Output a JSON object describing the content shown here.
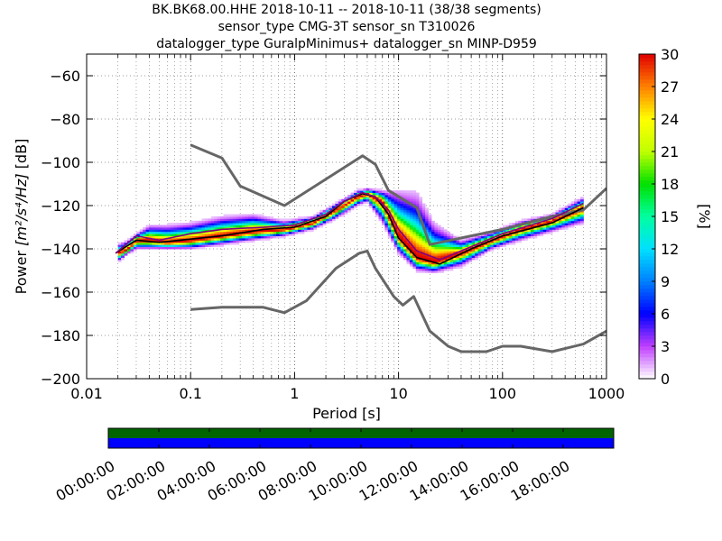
{
  "title_lines": [
    "BK.BK68.00.HHE   2018-10-11 -- 2018-10-11  (38/38 segments)",
    "sensor_type CMG-3T sensor_sn T310026",
    "datalogger_type GuralpMinimus+ datalogger_sn MINP-D959"
  ],
  "chart_data": [
    {
      "type": "heatmap",
      "title": "BK.BK68.00.HHE   2018-10-11 -- 2018-10-11  (38/38 segments)",
      "xlabel": "Period [s]",
      "ylabel": "Power [m²/s⁴/Hz] [dB]",
      "ylabel_parts": {
        "prefix": "Power ",
        "math": "[m²/s⁴/Hz]",
        "suffix": " [dB]"
      },
      "x_scale": "log",
      "xlim": [
        0.01,
        1000
      ],
      "ylim": [
        -200,
        -50
      ],
      "x_ticks": [
        0.01,
        0.1,
        1,
        10,
        100,
        1000
      ],
      "x_tick_labels": [
        "0.01",
        "0.1",
        "1",
        "10",
        "100",
        "1000"
      ],
      "y_ticks": [
        -200,
        -180,
        -160,
        -140,
        -120,
        -100,
        -80,
        -60
      ],
      "y_tick_labels": [
        "−200",
        "−180",
        "−160",
        "−140",
        "−120",
        "−100",
        "−80",
        "−60"
      ],
      "grid": true,
      "colorbar": {
        "label": "[%]",
        "range": [
          0,
          30
        ],
        "ticks": [
          0,
          3,
          6,
          9,
          12,
          15,
          18,
          21,
          24,
          27,
          30
        ],
        "tick_labels": [
          "0",
          "3",
          "6",
          "9",
          "12",
          "15",
          "18",
          "21",
          "24",
          "27",
          "30"
        ],
        "colormap": "pqlx"
      },
      "colormap_stops": [
        {
          "v": 0,
          "color": "#ffffff"
        },
        {
          "v": 3,
          "color": "#bf3fff"
        },
        {
          "v": 6,
          "color": "#0000ff"
        },
        {
          "v": 9,
          "color": "#0080ff"
        },
        {
          "v": 12,
          "color": "#00e0ff"
        },
        {
          "v": 15,
          "color": "#00ffa0"
        },
        {
          "v": 18,
          "color": "#00e000"
        },
        {
          "v": 21,
          "color": "#c0ff00"
        },
        {
          "v": 24,
          "color": "#ffff00"
        },
        {
          "v": 27,
          "color": "#ff8000"
        },
        {
          "v": 30,
          "color": "#e00000"
        }
      ],
      "series": [
        {
          "color": "#666666",
          "points": [
            [
              0.1,
              -92
            ],
            [
              0.2,
              -98
            ],
            [
              0.3,
              -111
            ],
            [
              0.8,
              -120
            ],
            [
              4.5,
              -97
            ],
            [
              6,
              -101
            ],
            [
              8,
              -113
            ],
            [
              15,
              -121
            ],
            [
              20,
              -138
            ],
            [
              100,
              -131
            ],
            [
              300,
              -125
            ],
            [
              600,
              -122
            ],
            [
              1000,
              -112
            ]
          ]
        },
        {
          "color": "#666666",
          "points": [
            [
              0.1,
              -168
            ],
            [
              0.2,
              -167
            ],
            [
              0.5,
              -167
            ],
            [
              0.8,
              -169.5
            ],
            [
              1.3,
              -164
            ],
            [
              2.5,
              -149
            ],
            [
              4.2,
              -142
            ],
            [
              5,
              -141
            ],
            [
              6,
              -149
            ],
            [
              9,
              -162
            ],
            [
              11,
              -166
            ],
            [
              14,
              -162
            ],
            [
              20,
              -178
            ],
            [
              30,
              -185
            ],
            [
              40,
              -187.5
            ],
            [
              70,
              -187.5
            ],
            [
              100,
              -185
            ],
            [
              150,
              -185
            ],
            [
              300,
              -187.5
            ],
            [
              600,
              -184
            ],
            [
              1000,
              -178
            ]
          ]
        },
        {
          "color": "#000000",
          "points": [
            [
              0.019,
              -142
            ],
            [
              0.03,
              -136
            ],
            [
              0.05,
              -137
            ],
            [
              0.1,
              -135.5
            ],
            [
              0.2,
              -134
            ],
            [
              0.5,
              -131
            ],
            [
              1,
              -130
            ],
            [
              2,
              -125
            ],
            [
              3,
              -118
            ],
            [
              4.5,
              -114.5
            ],
            [
              6,
              -116
            ],
            [
              8,
              -124
            ],
            [
              10,
              -135
            ],
            [
              15,
              -144
            ],
            [
              25,
              -147
            ],
            [
              50,
              -140
            ],
            [
              100,
              -134
            ],
            [
              300,
              -128
            ],
            [
              600,
              -121
            ]
          ]
        },
        {
          "color": "#800080",
          "points": [
            [
              0.019,
              -142
            ],
            [
              0.03,
              -134
            ],
            [
              0.05,
              -136
            ],
            [
              0.1,
              -133
            ],
            [
              0.2,
              -131
            ],
            [
              0.5,
              -130
            ],
            [
              1,
              -129
            ],
            [
              2,
              -124
            ],
            [
              3,
              -118
            ],
            [
              4.5,
              -114
            ],
            [
              6,
              -116
            ],
            [
              8,
              -122
            ],
            [
              10,
              -131
            ],
            [
              15,
              -141
            ],
            [
              25,
              -145
            ],
            [
              50,
              -139
            ],
            [
              100,
              -133
            ],
            [
              300,
              -126
            ],
            [
              600,
              -119
            ]
          ]
        }
      ],
      "psd_band": [
        {
          "x": 0.02,
          "lo": -146,
          "hi": -138,
          "mode": -142
        },
        {
          "x": 0.025,
          "lo": -142,
          "hi": -136,
          "mode": -140
        },
        {
          "x": 0.03,
          "lo": -140,
          "hi": -133,
          "mode": -136
        },
        {
          "x": 0.04,
          "lo": -140,
          "hi": -129,
          "mode": -136
        },
        {
          "x": 0.06,
          "lo": -140,
          "hi": -129,
          "mode": -137
        },
        {
          "x": 0.1,
          "lo": -140,
          "hi": -128,
          "mode": -136
        },
        {
          "x": 0.2,
          "lo": -138,
          "hi": -125,
          "mode": -134
        },
        {
          "x": 0.4,
          "lo": -136,
          "hi": -124,
          "mode": -132
        },
        {
          "x": 0.8,
          "lo": -134,
          "hi": -127,
          "mode": -131
        },
        {
          "x": 1.5,
          "lo": -131,
          "hi": -125,
          "mode": -128
        },
        {
          "x": 2.5,
          "lo": -126,
          "hi": -119,
          "mode": -122
        },
        {
          "x": 4,
          "lo": -120,
          "hi": -113,
          "mode": -116
        },
        {
          "x": 5,
          "lo": -118,
          "hi": -112,
          "mode": -114.5
        },
        {
          "x": 7,
          "lo": -128,
          "hi": -113,
          "mode": -118
        },
        {
          "x": 10,
          "lo": -142,
          "hi": -113,
          "mode": -134
        },
        {
          "x": 15,
          "lo": -150,
          "hi": -114,
          "mode": -144
        },
        {
          "x": 22,
          "lo": -151,
          "hi": -128,
          "mode": -146
        },
        {
          "x": 40,
          "lo": -148,
          "hi": -136,
          "mode": -142
        },
        {
          "x": 80,
          "lo": -140,
          "hi": -132,
          "mode": -136
        },
        {
          "x": 150,
          "lo": -136,
          "hi": -127,
          "mode": -131
        },
        {
          "x": 300,
          "lo": -132,
          "hi": -124,
          "mode": -127
        },
        {
          "x": 600,
          "lo": -128,
          "hi": -116,
          "mode": -121
        }
      ]
    },
    {
      "type": "bar",
      "title": "",
      "xlabel": "",
      "ylabel": "",
      "xlim": [
        0,
        20
      ],
      "x_ticks": [
        0,
        2,
        4,
        6,
        8,
        10,
        12,
        14,
        16,
        18
      ],
      "x_tick_labels": [
        "00:00:00",
        "02:00:00",
        "04:00:00",
        "06:00:00",
        "08:00:00",
        "10:00:00",
        "12:00:00",
        "14:00:00",
        "16:00:00",
        "18:00:00"
      ],
      "series": [
        {
          "color": "#006400",
          "segments": [
            [
              0,
              20
            ]
          ]
        },
        {
          "color": "#0000ff",
          "segments": [
            [
              0,
              20
            ]
          ]
        }
      ]
    }
  ]
}
